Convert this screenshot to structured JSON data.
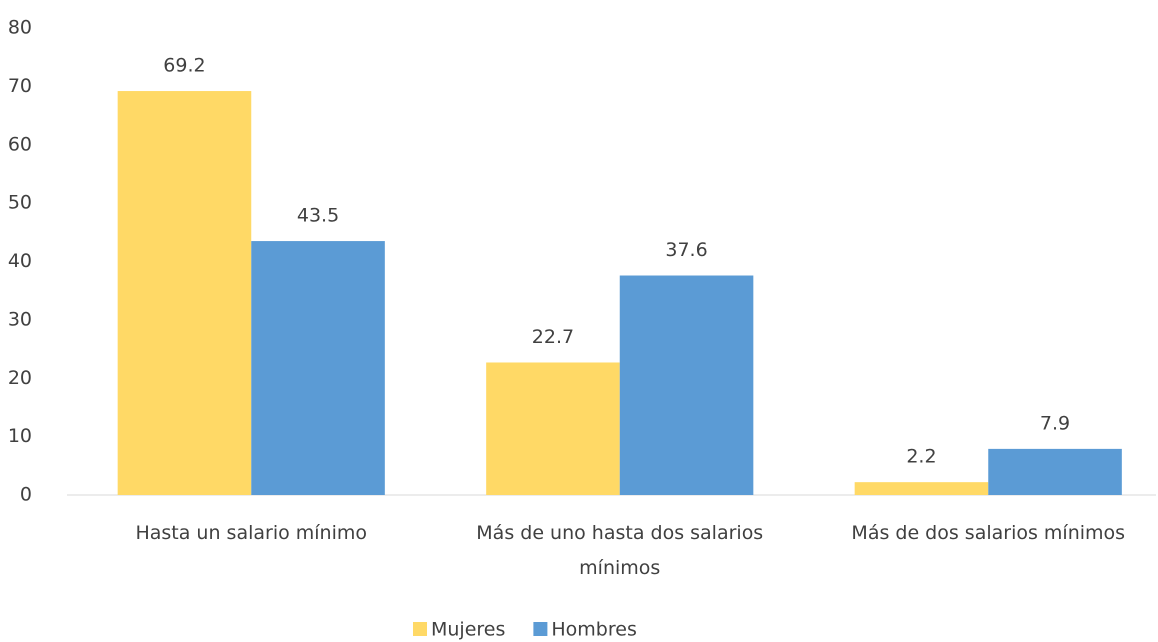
{
  "chart_data": {
    "type": "bar",
    "categories": [
      "Hasta un salario mínimo",
      "Más de uno hasta dos salarios mínimos",
      "Más de dos salarios mínimos"
    ],
    "series": [
      {
        "name": "Mujeres",
        "color": "#ffd966",
        "values": [
          69.2,
          22.7,
          2.2
        ]
      },
      {
        "name": "Hombres",
        "color": "#5b9bd5",
        "values": [
          43.5,
          37.6,
          7.9
        ]
      }
    ],
    "ylim": [
      0,
      80
    ],
    "yticks": [
      0,
      10,
      20,
      30,
      40,
      50,
      60,
      70,
      80
    ],
    "grid": false,
    "legend": "bottom"
  }
}
